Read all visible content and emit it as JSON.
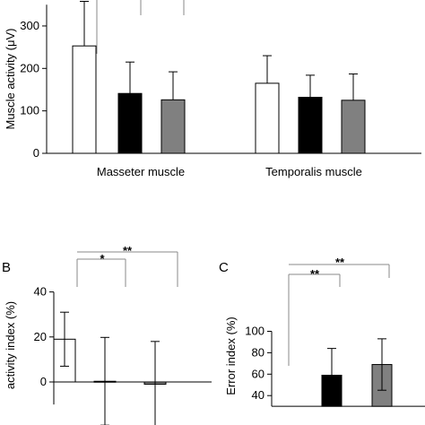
{
  "chart_data": [
    {
      "panel": "",
      "type": "bar",
      "ylabel": "Muscle activity (μV)",
      "ylim": [
        0,
        350
      ],
      "yticks": [
        0,
        100,
        200,
        300
      ],
      "categories": [
        "Masseter muscle",
        "Temporalis muscle"
      ],
      "series": [
        {
          "values": [
            253,
            165
          ],
          "errors": [
            105,
            65
          ],
          "fill": "#ffffff"
        },
        {
          "values": [
            141,
            132
          ],
          "errors": [
            74,
            52
          ],
          "fill": "#000000"
        },
        {
          "values": [
            126,
            125
          ],
          "errors": [
            66,
            62
          ],
          "fill": "#808080"
        }
      ],
      "annotations": []
    },
    {
      "panel": "B",
      "type": "bar",
      "ylabel": "activity index (%)",
      "ylim": [
        -10,
        40
      ],
      "yticks": [
        0,
        20,
        40
      ],
      "categories": [
        ""
      ],
      "series": [
        {
          "values": [
            19
          ],
          "errors": [
            12
          ],
          "fill": "#ffffff"
        },
        {
          "values": [
            0.3
          ],
          "errors": [
            19.5
          ],
          "fill": "#000000"
        },
        {
          "values": [
            -1
          ],
          "errors": [
            19
          ],
          "fill": "#808080"
        }
      ],
      "annotations": [
        "*",
        "**"
      ]
    },
    {
      "panel": "C",
      "type": "bar",
      "ylabel": "Error index (%)",
      "ylim": [
        30,
        100
      ],
      "yticks": [
        40,
        60,
        80,
        100
      ],
      "categories": [
        ""
      ],
      "series": [
        {
          "values": [
            null
          ],
          "errors": [
            null
          ],
          "fill": "#ffffff"
        },
        {
          "values": [
            59
          ],
          "errors": [
            25
          ],
          "fill": "#000000"
        },
        {
          "values": [
            69
          ],
          "errors": [
            24
          ],
          "fill": "#808080"
        }
      ],
      "annotations": [
        "**",
        "**"
      ]
    }
  ]
}
